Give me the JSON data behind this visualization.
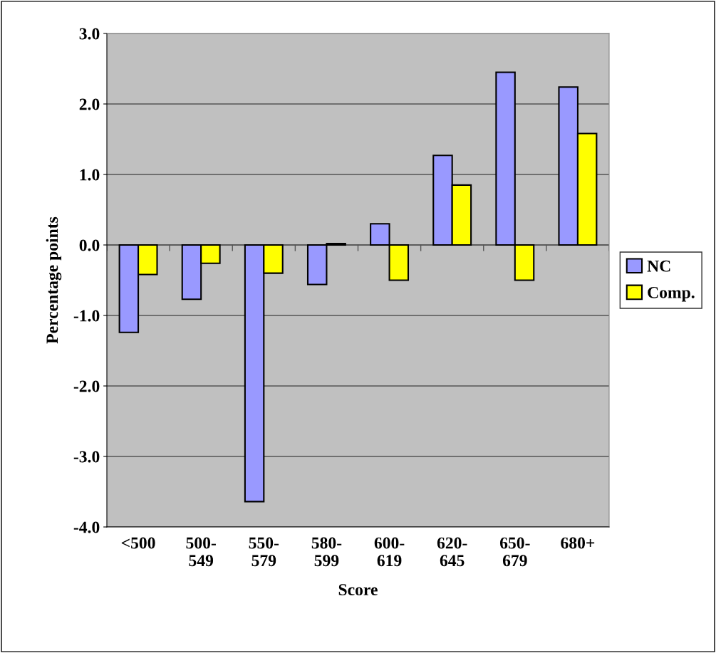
{
  "chart_data": {
    "type": "bar",
    "xlabel": "Score",
    "ylabel": "Percentage points",
    "categories": [
      "<500",
      "500-\n549",
      "550-\n579",
      "580-\n599",
      "600-\n619",
      "620-\n645",
      "650-\n679",
      "680+"
    ],
    "series": [
      {
        "name": "NC",
        "color": "#9999ff",
        "values": [
          -1.24,
          -0.77,
          -3.64,
          -0.56,
          0.3,
          1.27,
          2.45,
          2.24
        ]
      },
      {
        "name": "Comp.",
        "color": "#ffff00",
        "values": [
          -0.42,
          -0.26,
          -0.4,
          0.02,
          -0.5,
          0.85,
          -0.5,
          1.58
        ]
      }
    ],
    "ylim": [
      -4.0,
      3.0
    ],
    "yticks": [
      {
        "value": -4,
        "label": "-4.0"
      },
      {
        "value": -3,
        "label": "-3.0"
      },
      {
        "value": -2,
        "label": "-2.0"
      },
      {
        "value": -1,
        "label": "-1.0"
      },
      {
        "value": 0,
        "label": "0.0"
      },
      {
        "value": 1,
        "label": "1.0"
      },
      {
        "value": 2,
        "label": "2.0"
      },
      {
        "value": 3,
        "label": "3.0"
      }
    ],
    "grid": "y",
    "legend": "right"
  }
}
